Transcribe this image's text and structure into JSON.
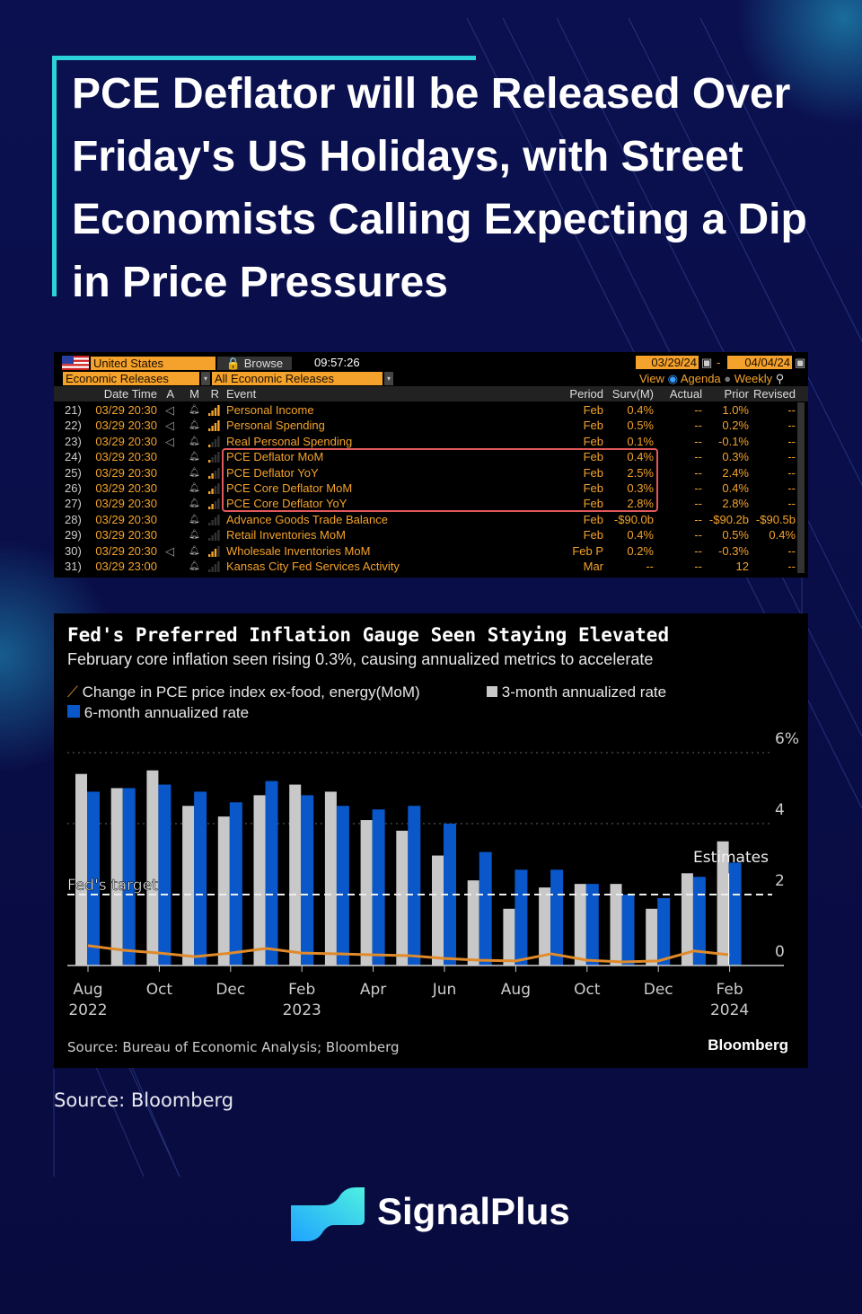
{
  "title": "PCE Deflator will be Released Over Friday's US Holidays, with Street Economists Calling Expecting a Dip in Price Pressures",
  "terminal": {
    "country": "United States",
    "browse": "Browse",
    "time": "09:57:26",
    "category": "Economic Releases",
    "filter": "All Economic Releases",
    "date_from": "03/29/24",
    "date_to": "04/04/24",
    "view_label": "View",
    "view_agenda": "Agenda",
    "view_weekly": "Weekly",
    "columns": [
      "Date Time",
      "A",
      "M",
      "R",
      "Event",
      "Period",
      "Surv(M)",
      "Actual",
      "Prior",
      "Revised"
    ],
    "rows": [
      {
        "n": "21)",
        "dt": "03/29 20:30",
        "a": true,
        "r": 4,
        "event": "Personal Income",
        "period": "Feb",
        "surv": "0.4%",
        "actual": "--",
        "prior": "1.0%",
        "revised": "--"
      },
      {
        "n": "22)",
        "dt": "03/29 20:30",
        "a": true,
        "r": 4,
        "event": "Personal Spending",
        "period": "Feb",
        "surv": "0.5%",
        "actual": "--",
        "prior": "0.2%",
        "revised": "--"
      },
      {
        "n": "23)",
        "dt": "03/29 20:30",
        "a": true,
        "r": 1,
        "event": "Real Personal Spending",
        "period": "Feb",
        "surv": "0.1%",
        "actual": "--",
        "prior": "-0.1%",
        "revised": "--"
      },
      {
        "n": "24)",
        "dt": "03/29 20:30",
        "a": false,
        "r": 1,
        "event": "PCE Deflator MoM",
        "period": "Feb",
        "surv": "0.4%",
        "actual": "--",
        "prior": "0.3%",
        "revised": "--"
      },
      {
        "n": "25)",
        "dt": "03/29 20:30",
        "a": false,
        "r": 2,
        "event": "PCE Deflator YoY",
        "period": "Feb",
        "surv": "2.5%",
        "actual": "--",
        "prior": "2.4%",
        "revised": "--"
      },
      {
        "n": "26)",
        "dt": "03/29 20:30",
        "a": false,
        "r": 2,
        "event": "PCE Core Deflator MoM",
        "period": "Feb",
        "surv": "0.3%",
        "actual": "--",
        "prior": "0.4%",
        "revised": "--"
      },
      {
        "n": "27)",
        "dt": "03/29 20:30",
        "a": false,
        "r": 2,
        "event": "PCE Core Deflator YoY",
        "period": "Feb",
        "surv": "2.8%",
        "actual": "--",
        "prior": "2.8%",
        "revised": "--"
      },
      {
        "n": "28)",
        "dt": "03/29 20:30",
        "a": false,
        "r": 0,
        "event": "Advance Goods Trade Balance",
        "period": "Feb",
        "surv": "-$90.0b",
        "actual": "--",
        "prior": "-$90.2b",
        "revised": "-$90.5b"
      },
      {
        "n": "29)",
        "dt": "03/29 20:30",
        "a": false,
        "r": 0,
        "event": "Retail Inventories MoM",
        "period": "Feb",
        "surv": "0.4%",
        "actual": "--",
        "prior": "0.5%",
        "revised": "0.4%"
      },
      {
        "n": "30)",
        "dt": "03/29 20:30",
        "a": true,
        "r": 3,
        "event": "Wholesale Inventories MoM",
        "period": "Feb P",
        "surv": "0.2%",
        "actual": "--",
        "prior": "-0.3%",
        "revised": "--"
      },
      {
        "n": "31)",
        "dt": "03/29 23:00",
        "a": false,
        "r": 0,
        "event": "Kansas City Fed Services Activity",
        "period": "Mar",
        "surv": "--",
        "actual": "--",
        "prior": "12",
        "revised": "--"
      }
    ]
  },
  "chart_data": {
    "type": "bar",
    "title": "Fed's Preferred Inflation Gauge Seen Staying Elevated",
    "subtitle": "February core inflation seen rising 0.3%, causing annualized metrics to accelerate",
    "categories": [
      "Aug 2022",
      "Sep 2022",
      "Oct 2022",
      "Nov 2022",
      "Dec 2022",
      "Jan 2023",
      "Feb 2023",
      "Mar 2023",
      "Apr 2023",
      "May 2023",
      "Jun 2023",
      "Jul 2023",
      "Aug 2023",
      "Sep 2023",
      "Oct 2023",
      "Nov 2023",
      "Dec 2023",
      "Jan 2024",
      "Feb 2024"
    ],
    "x_tick_labels": [
      [
        "Aug",
        "2022"
      ],
      [
        "Oct",
        ""
      ],
      [
        "Dec",
        ""
      ],
      [
        "Feb",
        "2023"
      ],
      [
        "Apr",
        ""
      ],
      [
        "Jun",
        ""
      ],
      [
        "Aug",
        ""
      ],
      [
        "Oct",
        ""
      ],
      [
        "Dec",
        ""
      ],
      [
        "Feb",
        "2024"
      ]
    ],
    "series": [
      {
        "name": "Change in PCE price index ex-food, energy(MoM)",
        "kind": "line",
        "color": "#e08a2a",
        "values": [
          0.56,
          0.43,
          0.35,
          0.25,
          0.35,
          0.48,
          0.35,
          0.33,
          0.3,
          0.28,
          0.2,
          0.15,
          0.13,
          0.33,
          0.15,
          0.1,
          0.13,
          0.41,
          0.3
        ]
      },
      {
        "name": "3-month annualized rate",
        "kind": "bar",
        "color": "#c8c8c8",
        "values": [
          5.4,
          5.0,
          5.5,
          4.5,
          4.2,
          4.8,
          5.1,
          4.9,
          4.1,
          3.8,
          3.1,
          2.4,
          1.6,
          2.2,
          2.3,
          2.3,
          1.6,
          2.6,
          3.5
        ]
      },
      {
        "name": "6-month annualized rate",
        "kind": "bar",
        "color": "#0a57c9",
        "values": [
          4.9,
          5.0,
          5.1,
          4.9,
          4.6,
          5.2,
          4.8,
          4.5,
          4.4,
          4.5,
          4.0,
          3.2,
          2.7,
          2.7,
          2.3,
          2.0,
          1.9,
          2.5,
          2.9
        ]
      }
    ],
    "y_ticks": [
      "0",
      "2",
      "4",
      "6%"
    ],
    "ylim": [
      0,
      6
    ],
    "reference_line": {
      "label": "Fed's target",
      "value": 2
    },
    "annotation": "Estimates",
    "source": "Source: Bureau of Economic Analysis; Bloomberg",
    "brand": "Bloomberg"
  },
  "source": "Source: Bloomberg",
  "brand": "SignalPlus"
}
